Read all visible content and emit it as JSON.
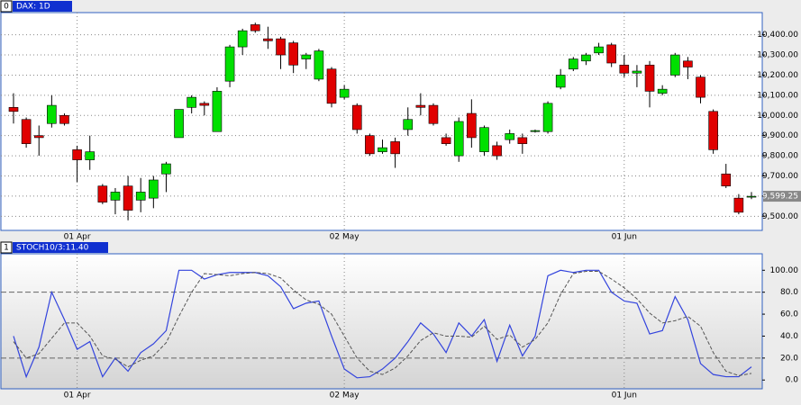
{
  "chart_data": [
    {
      "type": "candlestick",
      "index": "0",
      "title": "DAX: 1D",
      "categories": [
        null,
        null,
        null,
        null,
        null,
        "01 Apr",
        null,
        null,
        null,
        null,
        null,
        null,
        null,
        null,
        null,
        null,
        null,
        null,
        null,
        null,
        null,
        null,
        null,
        null,
        null,
        null,
        "02 May",
        null,
        null,
        null,
        null,
        null,
        null,
        null,
        null,
        null,
        null,
        null,
        null,
        null,
        null,
        null,
        null,
        null,
        null,
        null,
        null,
        null,
        "01 Jun",
        null,
        null,
        null,
        null,
        null,
        null,
        null,
        null,
        null,
        null
      ],
      "open": [
        10040,
        9980,
        9900,
        9960,
        10000,
        9830,
        9780,
        9650,
        9580,
        9650,
        9580,
        9590,
        9710,
        9890,
        10040,
        10060,
        9920,
        10170,
        10340,
        10450,
        10380,
        10380,
        10360,
        10280,
        10180,
        10230,
        10090,
        10050,
        9900,
        9820,
        9870,
        9930,
        10050,
        10050,
        9890,
        9800,
        10010,
        9820,
        9850,
        9880,
        9890,
        9920,
        9920,
        10140,
        10230,
        10270,
        10310,
        10350,
        10250,
        10210,
        10250,
        10110,
        10200,
        10270,
        10190,
        10020,
        9710,
        9590,
        9595
      ],
      "high": [
        10110,
        9990,
        9950,
        10100,
        10010,
        9850,
        9900,
        9660,
        9640,
        9700,
        9690,
        9700,
        9770,
        10030,
        10100,
        10070,
        10140,
        10350,
        10430,
        10460,
        10440,
        10390,
        10370,
        10310,
        10330,
        10240,
        10150,
        10060,
        9910,
        9880,
        9890,
        10040,
        10110,
        10060,
        9910,
        9990,
        10080,
        9950,
        9870,
        9930,
        9910,
        9930,
        10070,
        10230,
        10290,
        10310,
        10360,
        10360,
        10300,
        10250,
        10270,
        10150,
        10310,
        10290,
        10200,
        10030,
        9760,
        9610,
        9620
      ],
      "low": [
        9960,
        9840,
        9800,
        9940,
        9950,
        9670,
        9730,
        9560,
        9510,
        9480,
        9520,
        9540,
        9620,
        9890,
        10010,
        10000,
        9920,
        10140,
        10300,
        10410,
        10330,
        10230,
        10210,
        10230,
        10170,
        10040,
        10080,
        9910,
        9800,
        9810,
        9740,
        9900,
        10000,
        9950,
        9850,
        9770,
        9840,
        9800,
        9780,
        9860,
        9810,
        9915,
        9910,
        10130,
        10220,
        10250,
        10300,
        10240,
        10190,
        10140,
        10040,
        10100,
        10190,
        10180,
        10060,
        9810,
        9640,
        9510,
        9585
      ],
      "close": [
        10020,
        9860,
        9890,
        10050,
        9960,
        9780,
        9820,
        9570,
        9620,
        9530,
        9620,
        9680,
        9760,
        10030,
        10090,
        10050,
        10120,
        10340,
        10420,
        10420,
        10370,
        10300,
        10250,
        10300,
        10320,
        10060,
        10130,
        9930,
        9810,
        9840,
        9810,
        9980,
        10040,
        9960,
        9860,
        9970,
        9890,
        9940,
        9800,
        9910,
        9860,
        9925,
        10060,
        10200,
        10280,
        10300,
        10340,
        10260,
        10210,
        10220,
        10120,
        10130,
        10300,
        10240,
        10090,
        9830,
        9650,
        9520,
        9599.25
      ],
      "last_value_label": "9,599.25",
      "up_color": "#00e000",
      "down_color": "#e00000",
      "ylim": [
        9430,
        10510
      ],
      "yticks": [
        {
          "value": 9500,
          "label": "9,500.00"
        },
        {
          "value": 9600,
          "label": "9,600.00"
        },
        {
          "value": 9700,
          "label": "9,700.00"
        },
        {
          "value": 9800,
          "label": "9,800.00"
        },
        {
          "value": 9900,
          "label": "9,900.00"
        },
        {
          "value": 10000,
          "label": "10,000.00"
        },
        {
          "value": 10100,
          "label": "10,100.00"
        },
        {
          "value": 10200,
          "label": "10,200.00"
        },
        {
          "value": 10300,
          "label": "10,300.00"
        },
        {
          "value": 10400,
          "label": "10,400.00"
        }
      ],
      "grid": true
    },
    {
      "type": "line",
      "index": "1",
      "title": "STOCH10/3:11.40",
      "categories": [
        null,
        null,
        null,
        null,
        null,
        "01 Apr",
        null,
        null,
        null,
        null,
        null,
        null,
        null,
        null,
        null,
        null,
        null,
        null,
        null,
        null,
        null,
        null,
        null,
        null,
        null,
        null,
        "02 May",
        null,
        null,
        null,
        null,
        null,
        null,
        null,
        null,
        null,
        null,
        null,
        null,
        null,
        null,
        null,
        null,
        null,
        null,
        null,
        null,
        null,
        "01 Jun",
        null,
        null,
        null,
        null,
        null,
        null,
        null,
        null,
        null,
        null
      ],
      "series": [
        {
          "color": "#3344dd",
          "dashed": false,
          "values": [
            40,
            3,
            30,
            80,
            55,
            28,
            35,
            3,
            20,
            8,
            25,
            33,
            45,
            100,
            100,
            92,
            96,
            98,
            98,
            98,
            95,
            85,
            65,
            70,
            72,
            40,
            10,
            2,
            3,
            10,
            20,
            35,
            52,
            42,
            25,
            52,
            40,
            55,
            17,
            50,
            22,
            40,
            95,
            100,
            98,
            100,
            100,
            80,
            72,
            70,
            42,
            45,
            76,
            55,
            15,
            5,
            3,
            3,
            12
          ]
        },
        {
          "color": "#555555",
          "dashed": true,
          "values": [
            35,
            20,
            24,
            38,
            52,
            52,
            40,
            22,
            19,
            12,
            18,
            22,
            34,
            58,
            80,
            97,
            96,
            95,
            97,
            98,
            97,
            93,
            82,
            73,
            69,
            60,
            40,
            20,
            8,
            5,
            11,
            22,
            36,
            43,
            40,
            40,
            39,
            49,
            37,
            41,
            30,
            37,
            52,
            78,
            97,
            99,
            99,
            92,
            84,
            74,
            61,
            52,
            54,
            58,
            49,
            25,
            8,
            4,
            6
          ]
        }
      ],
      "reference_lines": [
        20,
        80
      ],
      "ylim": [
        -8,
        115
      ],
      "yticks": [
        {
          "value": 0,
          "label": "0.0"
        },
        {
          "value": 20,
          "label": "20.0"
        },
        {
          "value": 40,
          "label": "40.0"
        },
        {
          "value": 60,
          "label": "60.0"
        },
        {
          "value": 80,
          "label": "80.0"
        },
        {
          "value": 100,
          "label": "100.00"
        }
      ],
      "grid": true
    }
  ]
}
